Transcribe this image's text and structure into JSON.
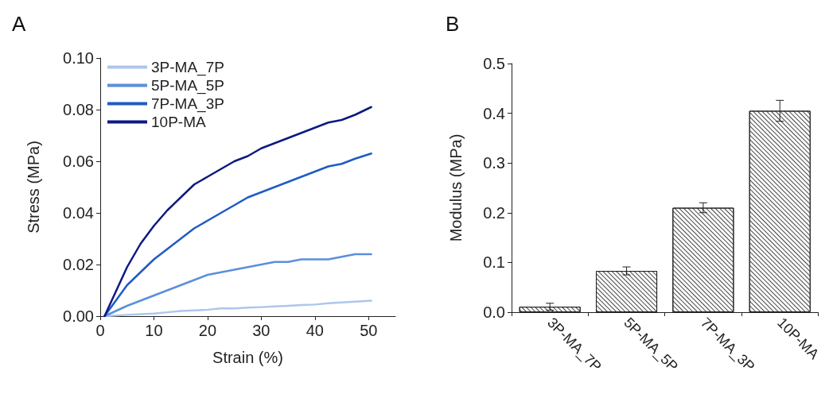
{
  "chart_data": [
    {
      "type": "line",
      "title": "A",
      "xlabel": "Strain (%)",
      "ylabel": "Stress (MPa)",
      "xlim": [
        0,
        55
      ],
      "xticks": [
        0,
        10,
        20,
        30,
        40,
        50
      ],
      "ylim": [
        0,
        0.1
      ],
      "yticks": [
        {
          "value": 0,
          "label": "0.00"
        },
        {
          "value": 0.02,
          "label": "0.02"
        },
        {
          "value": 0.04,
          "label": "0.04"
        },
        {
          "value": 0.06,
          "label": "0.06"
        },
        {
          "value": 0.08,
          "label": "0.08"
        },
        {
          "value": 0.1,
          "label": "0.10"
        }
      ],
      "grid": false,
      "legend": "top left",
      "marker": "none",
      "line_style": "solid",
      "x": [
        0.8,
        5,
        7.5,
        10,
        12.5,
        15,
        17.5,
        20,
        22.5,
        25,
        27.5,
        30,
        32.5,
        35,
        37.5,
        40,
        42.5,
        45,
        47.5,
        50.5
      ],
      "series": [
        {
          "name": "3P-MA_7P",
          "color": "#aec6ec",
          "values": [
            0,
            0.0005,
            0.0008,
            0.001,
            0.0015,
            0.002,
            0.0022,
            0.0025,
            0.003,
            0.003,
            0.0033,
            0.0035,
            0.0038,
            0.004,
            0.0043,
            0.0045,
            0.005,
            0.0053,
            0.0056,
            0.006
          ]
        },
        {
          "name": "5P-MA_5P",
          "color": "#5b8fdc",
          "values": [
            0,
            0.004,
            0.006,
            0.008,
            0.01,
            0.012,
            0.014,
            0.016,
            0.017,
            0.018,
            0.019,
            0.02,
            0.021,
            0.021,
            0.022,
            0.022,
            0.022,
            0.023,
            0.024,
            0.024
          ]
        },
        {
          "name": "7P-MA_3P",
          "color": "#1f5bc4",
          "values": [
            0,
            0.012,
            0.017,
            0.022,
            0.026,
            0.03,
            0.034,
            0.037,
            0.04,
            0.043,
            0.046,
            0.048,
            0.05,
            0.052,
            0.054,
            0.056,
            0.058,
            0.059,
            0.061,
            0.063
          ]
        },
        {
          "name": "10P-MA",
          "color": "#0d1a80",
          "values": [
            0,
            0.019,
            0.028,
            0.035,
            0.041,
            0.046,
            0.051,
            0.054,
            0.057,
            0.06,
            0.062,
            0.065,
            0.067,
            0.069,
            0.071,
            0.073,
            0.075,
            0.076,
            0.078,
            0.081
          ]
        }
      ]
    },
    {
      "type": "bar",
      "title": "B",
      "ylabel": "Modulus (MPa)",
      "categories": [
        "3P-MA_7P",
        "5P-MA_5P",
        "7P-MA_3P",
        "10P-MA"
      ],
      "values": [
        0.011,
        0.083,
        0.21,
        0.405
      ],
      "errors": [
        0.007,
        0.008,
        0.01,
        0.021
      ],
      "color": "#ffffff",
      "ylim": [
        0,
        0.5
      ],
      "yticks": [
        {
          "value": 0,
          "label": "0.0"
        },
        {
          "value": 0.1,
          "label": "0.1"
        },
        {
          "value": 0.2,
          "label": "0.2"
        },
        {
          "value": 0.3,
          "label": "0.3"
        },
        {
          "value": 0.4,
          "label": "0.4"
        },
        {
          "value": 0.5,
          "label": "0.5"
        }
      ],
      "grid": false
    }
  ]
}
